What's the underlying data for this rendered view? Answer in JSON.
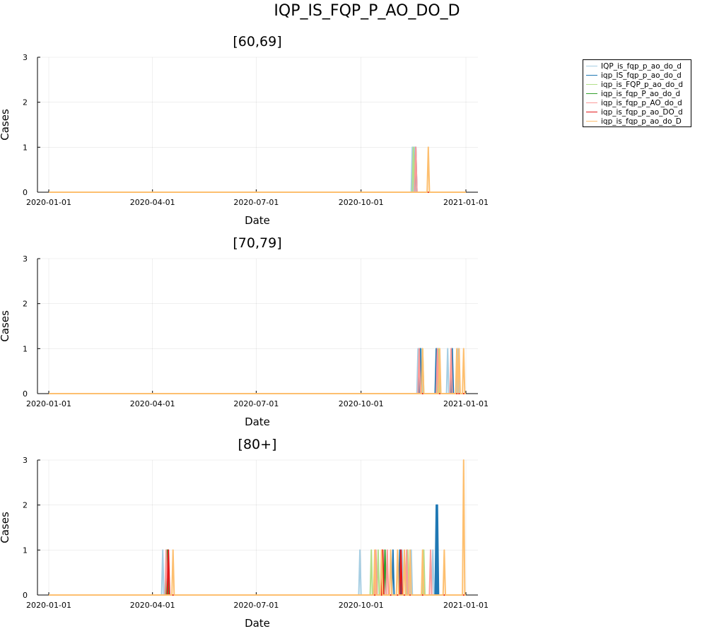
{
  "chart_data": {
    "type": "line",
    "title": "IQP_IS_FQP_P_AO_DO_D",
    "legend": {
      "position": "top-right",
      "entries": [
        "IQP_is_fqp_p_ao_do_d",
        "iqp_IS_fqp_p_ao_do_d",
        "iqp_is_FQP_p_ao_do_d",
        "iqp_is_fqp_P_ao_do_d",
        "iqp_is_fqp_p_AO_do_d",
        "iqp_is_fqp_p_ao_DO_d",
        "iqp_is_fqp_p_ao_do_D"
      ]
    },
    "colors": [
      "#a6cee3",
      "#1f78b4",
      "#b2df8a",
      "#33a02c",
      "#fb9a99",
      "#e31a1c",
      "#fdbf6f"
    ],
    "series_colors": [
      "#a6cee3",
      "#1f78b4",
      "#b2df8a",
      "#33a02c",
      "#fb9a99",
      "#e31a1c",
      "#fdbf6f"
    ],
    "panels": [
      {
        "title": "[60,69]",
        "xlabel": "Date",
        "ylabel": "Cases",
        "xlim": [
          "2020-01-01",
          "2021-01-01"
        ],
        "ylim": [
          0,
          3
        ],
        "yticks": [
          0,
          1,
          2,
          3
        ],
        "xticks": [
          "2020-01-01",
          "2020-04-01",
          "2020-07-01",
          "2020-10-01",
          "2021-01-01"
        ],
        "grid": true,
        "series": [
          {
            "name": "IQP_is_fqp_p_ao_do_d",
            "spikes": [
              [
                "2020-11-15",
                1
              ],
              [
                "2020-11-17",
                1
              ]
            ]
          },
          {
            "name": "iqp_IS_fqp_p_ao_do_d",
            "spikes": [
              [
                "2020-11-18",
                1
              ]
            ]
          },
          {
            "name": "iqp_is_FQP_p_ao_do_d",
            "spikes": [
              [
                "2020-11-16",
                1
              ]
            ]
          },
          {
            "name": "iqp_is_fqp_P_ao_do_d",
            "spikes": []
          },
          {
            "name": "iqp_is_fqp_p_AO_do_d",
            "spikes": [
              [
                "2020-11-18",
                1
              ]
            ]
          },
          {
            "name": "iqp_is_fqp_p_ao_DO_d",
            "spikes": []
          },
          {
            "name": "iqp_is_fqp_p_ao_do_D",
            "spikes": [
              [
                "2020-11-29",
                1
              ]
            ]
          }
        ]
      },
      {
        "title": "[70,79]",
        "xlabel": "Date",
        "ylabel": "Cases",
        "xlim": [
          "2020-01-01",
          "2021-01-01"
        ],
        "ylim": [
          0,
          3
        ],
        "yticks": [
          0,
          1,
          2,
          3
        ],
        "xticks": [
          "2020-01-01",
          "2020-04-01",
          "2020-07-01",
          "2020-10-01",
          "2021-01-01"
        ],
        "grid": true,
        "series": [
          {
            "name": "IQP_is_fqp_p_ao_do_d",
            "spikes": [
              [
                "2020-11-20",
                1
              ],
              [
                "2020-11-23",
                1
              ],
              [
                "2020-12-16",
                1
              ],
              [
                "2020-12-25",
                1
              ]
            ]
          },
          {
            "name": "iqp_IS_fqp_p_ao_do_d",
            "spikes": [
              [
                "2020-11-22",
                1
              ],
              [
                "2020-12-06",
                1
              ],
              [
                "2020-12-20",
                1
              ]
            ]
          },
          {
            "name": "iqp_is_FQP_p_ao_do_d",
            "spikes": [
              [
                "2020-11-24",
                1
              ],
              [
                "2020-12-08",
                1
              ]
            ]
          },
          {
            "name": "iqp_is_fqp_P_ao_do_d",
            "spikes": []
          },
          {
            "name": "iqp_is_fqp_p_AO_do_d",
            "spikes": [
              [
                "2020-11-21",
                1
              ],
              [
                "2020-12-07",
                1
              ],
              [
                "2020-12-19",
                1
              ]
            ]
          },
          {
            "name": "iqp_is_fqp_p_ao_DO_d",
            "spikes": []
          },
          {
            "name": "iqp_is_fqp_p_ao_do_D",
            "spikes": [
              [
                "2020-11-24",
                1
              ],
              [
                "2020-12-09",
                1
              ],
              [
                "2020-12-24",
                1
              ],
              [
                "2020-12-26",
                1
              ],
              [
                "2020-12-30",
                1
              ]
            ]
          }
        ]
      },
      {
        "title": "[80+]",
        "xlabel": "Date",
        "ylabel": "Cases",
        "xlim": [
          "2020-01-01",
          "2021-01-01"
        ],
        "ylim": [
          0,
          3
        ],
        "yticks": [
          0,
          1,
          2,
          3
        ],
        "xticks": [
          "2020-01-01",
          "2020-04-01",
          "2020-07-01",
          "2020-10-01",
          "2021-01-01"
        ],
        "grid": true,
        "series": [
          {
            "name": "IQP_is_fqp_p_ao_do_d",
            "spikes": [
              [
                "2020-04-10",
                1
              ],
              [
                "2020-09-30",
                1
              ],
              [
                "2020-11-06",
                1
              ],
              [
                "2020-11-14",
                1
              ],
              [
                "2020-12-03",
                1
              ]
            ]
          },
          {
            "name": "iqp_IS_fqp_p_ao_do_d",
            "spikes": [
              [
                "2020-10-29",
                1
              ],
              [
                "2020-11-04",
                1
              ],
              [
                "2020-12-06",
                2
              ],
              [
                "2020-12-07",
                2
              ]
            ]
          },
          {
            "name": "iqp_is_FQP_p_ao_do_d",
            "spikes": [
              [
                "2020-10-10",
                1
              ],
              [
                "2020-10-16",
                1
              ],
              [
                "2020-11-11",
                1
              ],
              [
                "2020-11-25",
                1
              ]
            ]
          },
          {
            "name": "iqp_is_fqp_P_ao_do_d",
            "spikes": [
              [
                "2020-04-14",
                1
              ],
              [
                "2020-10-22",
                1
              ]
            ]
          },
          {
            "name": "iqp_is_fqp_p_AO_do_d",
            "spikes": [
              [
                "2020-04-13",
                1
              ],
              [
                "2020-10-14",
                1
              ],
              [
                "2020-10-24",
                1
              ],
              [
                "2020-11-10",
                1
              ],
              [
                "2020-12-01",
                1
              ]
            ]
          },
          {
            "name": "iqp_is_fqp_p_ao_DO_d",
            "spikes": [
              [
                "2020-04-15",
                1
              ],
              [
                "2020-10-20",
                1
              ],
              [
                "2020-11-05",
                1
              ]
            ]
          },
          {
            "name": "iqp_is_fqp_p_ao_do_D",
            "spikes": [
              [
                "2020-04-19",
                1
              ],
              [
                "2020-10-13",
                1
              ],
              [
                "2020-10-19",
                1
              ],
              [
                "2020-10-27",
                1
              ],
              [
                "2020-11-02",
                1
              ],
              [
                "2020-11-08",
                1
              ],
              [
                "2020-11-13",
                1
              ],
              [
                "2020-11-24",
                1
              ],
              [
                "2020-12-13",
                1
              ],
              [
                "2020-12-30",
                3
              ]
            ]
          }
        ]
      }
    ]
  }
}
